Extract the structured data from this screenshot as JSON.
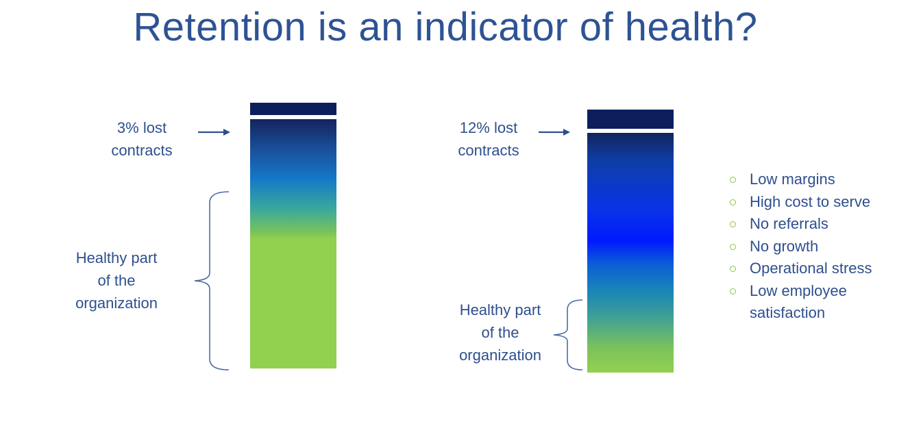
{
  "title": "Retention is an indicator of health?",
  "left": {
    "lost_label_line1": "3% lost",
    "lost_label_line2": "contracts",
    "healthy_line1": "Healthy part",
    "healthy_line2": "of the",
    "healthy_line3": "organization"
  },
  "right": {
    "lost_label_line1": "12% lost",
    "lost_label_line2": "contracts",
    "healthy_line1": "Healthy part",
    "healthy_line2": "of the",
    "healthy_line3": "organization",
    "bullets": [
      {
        "line1": "Low margins",
        "line2": ""
      },
      {
        "line1": "High cost to serve",
        "line2": ""
      },
      {
        "line1": "No referrals",
        "line2": ""
      },
      {
        "line1": "No growth",
        "line2": ""
      },
      {
        "line1": "Operational stress",
        "line2": ""
      },
      {
        "line1": "Low employee",
        "line2": "satisfaction"
      }
    ]
  },
  "colors": {
    "title": "#2e5394",
    "text": "#2e4f8e",
    "lost_segment": "#0c1f5c",
    "healthy_green": "#92d050",
    "bullet_marker": "#8dc63f",
    "arrow": "#2e4f8e"
  },
  "values": {
    "left_lost_percent": 3,
    "right_lost_percent": 12
  }
}
